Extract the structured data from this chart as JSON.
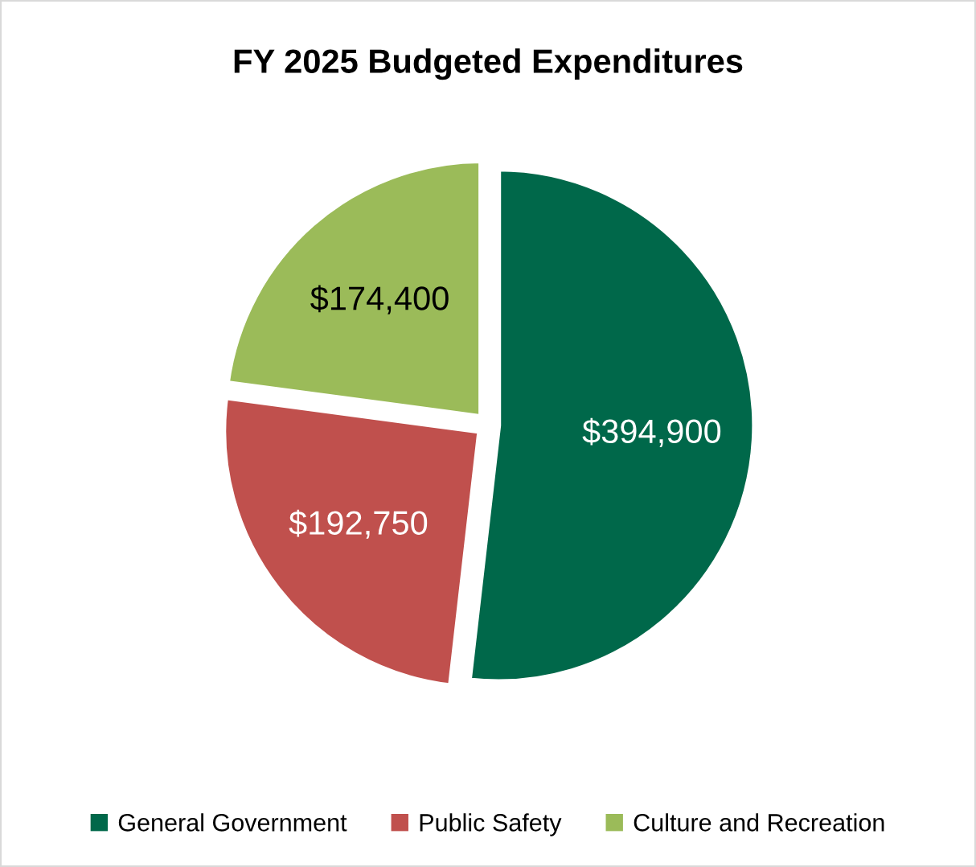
{
  "chart_data": {
    "type": "pie",
    "title": "FY 2025 Budgeted Expenditures",
    "categories": [
      "General Government",
      "Public Safety",
      "Culture and Recreation"
    ],
    "values": [
      394900,
      192750,
      174400
    ],
    "colors": [
      "#00684a",
      "#c0504d",
      "#9bbb59"
    ],
    "value_labels": [
      "$394,900",
      "$192,750",
      "$174,400"
    ],
    "legend": "bottom"
  }
}
